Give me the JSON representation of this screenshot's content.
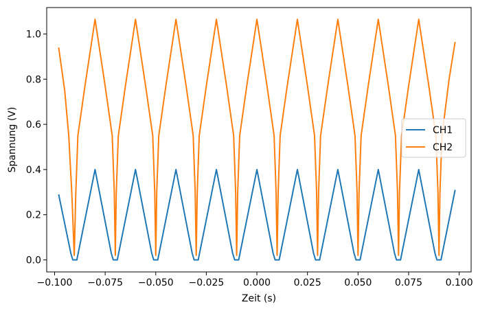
{
  "chart_data": {
    "type": "line",
    "title": "",
    "xlabel": "Zeit (s)",
    "ylabel": "Spannung (V)",
    "xlim": [
      -0.1039,
      0.1059
    ],
    "ylim": [
      -0.0532,
      1.117
    ],
    "xticks": [
      -0.1,
      -0.075,
      -0.05,
      -0.025,
      0.0,
      0.025,
      0.05,
      0.075,
      0.1
    ],
    "xtick_labels": [
      "−0.100",
      "−0.075",
      "−0.050",
      "−0.025",
      "0.000",
      "0.025",
      "0.050",
      "0.075",
      "0.100"
    ],
    "yticks": [
      0.0,
      0.2,
      0.4,
      0.6,
      0.8,
      1.0
    ],
    "ytick_labels": [
      "0.0",
      "0.2",
      "0.4",
      "0.6",
      "0.8",
      "1.0"
    ],
    "grid": false,
    "legend_position": "right",
    "series": [
      {
        "name": "CH1",
        "color": "#1f77b4",
        "points": [
          [
            -0.098,
            0.29
          ],
          [
            -0.092,
            0.03
          ],
          [
            -0.091,
            0.0
          ],
          [
            -0.089,
            0.0
          ],
          [
            -0.08,
            0.4
          ],
          [
            -0.072,
            0.03
          ],
          [
            -0.071,
            0.0
          ],
          [
            -0.069,
            0.0
          ],
          [
            -0.06,
            0.4
          ],
          [
            -0.052,
            0.03
          ],
          [
            -0.051,
            0.0
          ],
          [
            -0.049,
            0.0
          ],
          [
            -0.04,
            0.4
          ],
          [
            -0.032,
            0.03
          ],
          [
            -0.031,
            0.0
          ],
          [
            -0.029,
            0.0
          ],
          [
            -0.02,
            0.4
          ],
          [
            -0.012,
            0.03
          ],
          [
            -0.011,
            0.0
          ],
          [
            -0.009,
            0.0
          ],
          [
            0.0,
            0.4
          ],
          [
            0.008,
            0.03
          ],
          [
            0.009,
            0.0
          ],
          [
            0.011,
            0.0
          ],
          [
            0.02,
            0.4
          ],
          [
            0.028,
            0.03
          ],
          [
            0.029,
            0.0
          ],
          [
            0.031,
            0.0
          ],
          [
            0.04,
            0.4
          ],
          [
            0.048,
            0.03
          ],
          [
            0.049,
            0.0
          ],
          [
            0.051,
            0.0
          ],
          [
            0.06,
            0.4
          ],
          [
            0.068,
            0.03
          ],
          [
            0.069,
            0.0
          ],
          [
            0.071,
            0.0
          ],
          [
            0.08,
            0.4
          ],
          [
            0.088,
            0.03
          ],
          [
            0.089,
            0.0
          ],
          [
            0.091,
            0.0
          ],
          [
            0.098,
            0.31
          ]
        ]
      },
      {
        "name": "CH2",
        "color": "#ff7f0e",
        "points": [
          [
            -0.098,
            0.94
          ],
          [
            -0.095,
            0.75
          ],
          [
            -0.093,
            0.55
          ],
          [
            -0.0915,
            0.3
          ],
          [
            -0.0903,
            0.02
          ],
          [
            -0.0895,
            0.3
          ],
          [
            -0.0885,
            0.55
          ],
          [
            -0.085,
            0.77
          ],
          [
            -0.08,
            1.065
          ],
          [
            -0.075,
            0.77
          ],
          [
            -0.0715,
            0.55
          ],
          [
            -0.0705,
            0.3
          ],
          [
            -0.07,
            0.02
          ],
          [
            -0.0695,
            0.3
          ],
          [
            -0.0685,
            0.55
          ],
          [
            -0.065,
            0.77
          ],
          [
            -0.06,
            1.065
          ],
          [
            -0.055,
            0.77
          ],
          [
            -0.0515,
            0.55
          ],
          [
            -0.0505,
            0.3
          ],
          [
            -0.05,
            0.02
          ],
          [
            -0.0495,
            0.3
          ],
          [
            -0.0485,
            0.55
          ],
          [
            -0.045,
            0.77
          ],
          [
            -0.04,
            1.065
          ],
          [
            -0.035,
            0.77
          ],
          [
            -0.0315,
            0.55
          ],
          [
            -0.0305,
            0.3
          ],
          [
            -0.03,
            0.02
          ],
          [
            -0.0295,
            0.3
          ],
          [
            -0.0285,
            0.55
          ],
          [
            -0.025,
            0.77
          ],
          [
            -0.02,
            1.065
          ],
          [
            -0.015,
            0.77
          ],
          [
            -0.0115,
            0.55
          ],
          [
            -0.0105,
            0.3
          ],
          [
            -0.01,
            0.02
          ],
          [
            -0.0095,
            0.3
          ],
          [
            -0.0085,
            0.55
          ],
          [
            -0.005,
            0.77
          ],
          [
            0.0,
            1.065
          ],
          [
            0.005,
            0.77
          ],
          [
            0.0085,
            0.55
          ],
          [
            0.0095,
            0.3
          ],
          [
            0.01,
            0.02
          ],
          [
            0.0105,
            0.3
          ],
          [
            0.0115,
            0.55
          ],
          [
            0.015,
            0.77
          ],
          [
            0.02,
            1.065
          ],
          [
            0.025,
            0.77
          ],
          [
            0.0285,
            0.55
          ],
          [
            0.0295,
            0.3
          ],
          [
            0.03,
            0.02
          ],
          [
            0.0305,
            0.3
          ],
          [
            0.0315,
            0.55
          ],
          [
            0.035,
            0.77
          ],
          [
            0.04,
            1.065
          ],
          [
            0.045,
            0.77
          ],
          [
            0.0485,
            0.55
          ],
          [
            0.0495,
            0.3
          ],
          [
            0.05,
            0.02
          ],
          [
            0.0505,
            0.3
          ],
          [
            0.0515,
            0.55
          ],
          [
            0.055,
            0.77
          ],
          [
            0.06,
            1.065
          ],
          [
            0.065,
            0.77
          ],
          [
            0.0685,
            0.55
          ],
          [
            0.0695,
            0.3
          ],
          [
            0.07,
            0.02
          ],
          [
            0.0705,
            0.3
          ],
          [
            0.0715,
            0.55
          ],
          [
            0.075,
            0.77
          ],
          [
            0.08,
            1.065
          ],
          [
            0.085,
            0.77
          ],
          [
            0.0885,
            0.55
          ],
          [
            0.0895,
            0.3
          ],
          [
            0.09,
            0.02
          ],
          [
            0.0905,
            0.3
          ],
          [
            0.0915,
            0.55
          ],
          [
            0.095,
            0.8
          ],
          [
            0.098,
            0.965
          ]
        ]
      }
    ]
  }
}
